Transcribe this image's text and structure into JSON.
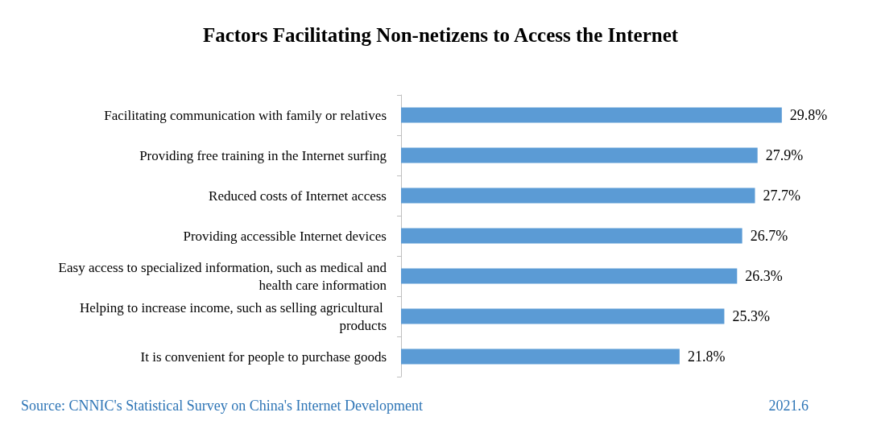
{
  "chart_data": {
    "type": "bar",
    "orientation": "horizontal",
    "title": "Factors Facilitating Non-netizens to Access the Internet",
    "categories": [
      "Facilitating communication with family or relatives",
      "Providing free training in the Internet surfing",
      "Reduced costs of Internet access",
      "Providing accessible Internet devices",
      "Easy access to specialized information, such as medical and health care information",
      "Helping to increase income, such as selling agricultural products",
      "It is convenient for people to purchase goods"
    ],
    "values": [
      29.8,
      27.9,
      27.7,
      26.7,
      26.3,
      25.3,
      21.8
    ],
    "value_labels": [
      "29.8%",
      "27.9%",
      "27.7%",
      "26.7%",
      "26.3%",
      "25.3%",
      "21.8%"
    ],
    "color": "#5b9bd5",
    "annotations": [
      "Source: CNNIC's Statistical Survey on China's Internet Development",
      "2021.6"
    ]
  }
}
